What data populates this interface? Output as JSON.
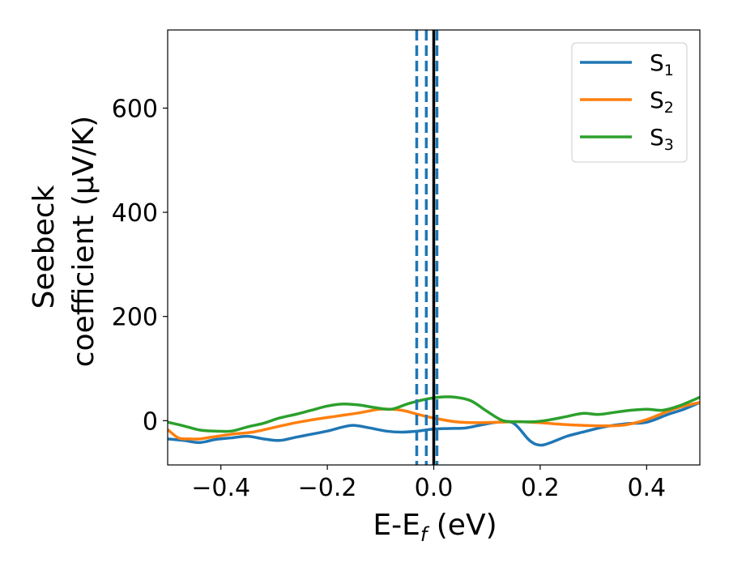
{
  "chart_data": {
    "type": "line",
    "xlabel": {
      "main": "E-E",
      "sub": "f",
      "rest": " (eV)"
    },
    "ylabel": {
      "line1": "Seebeck",
      "line2": "coefficient  (μV/K)"
    },
    "xlim": [
      -0.5,
      0.5
    ],
    "ylim": [
      -85,
      750
    ],
    "xticks": [
      -0.4,
      -0.2,
      0.0,
      0.2,
      0.4
    ],
    "xtick_labels": [
      "−0.4",
      "−0.2",
      "0.0",
      "0.2",
      "0.4"
    ],
    "yticks": [
      0,
      200,
      400,
      600
    ],
    "ytick_labels": [
      "0",
      "200",
      "400",
      "600"
    ],
    "grid": false,
    "legend_position": "top-right",
    "vlines": [
      {
        "x": 0.0,
        "style": "solid",
        "color": "#000000"
      },
      {
        "x": -0.032,
        "style": "dashed",
        "color": "#1f77b4"
      },
      {
        "x": -0.014,
        "style": "dashed",
        "color": "#1f77b4"
      },
      {
        "x": 0.006,
        "style": "dashed",
        "color": "#1f77b4"
      }
    ],
    "series": [
      {
        "name": "S",
        "sub": "1",
        "color": "#1f77b4",
        "x": [
          -0.5,
          -0.47,
          -0.44,
          -0.41,
          -0.38,
          -0.35,
          -0.32,
          -0.29,
          -0.26,
          -0.23,
          -0.2,
          -0.17,
          -0.15,
          -0.12,
          -0.09,
          -0.06,
          -0.03,
          0.0,
          0.03,
          0.06,
          0.09,
          0.12,
          0.15,
          0.18,
          0.2,
          0.22,
          0.25,
          0.28,
          0.32,
          0.36,
          0.4,
          0.44,
          0.47,
          0.5
        ],
        "y": [
          -35,
          -38,
          -42,
          -36,
          -33,
          -30,
          -35,
          -38,
          -32,
          -26,
          -20,
          -12,
          -9,
          -14,
          -20,
          -22,
          -20,
          -16,
          -15,
          -14,
          -8,
          -3,
          -5,
          -38,
          -47,
          -42,
          -30,
          -22,
          -12,
          -6,
          -3,
          12,
          22,
          35
        ]
      },
      {
        "name": "S",
        "sub": "2",
        "color": "#ff7f0e",
        "x": [
          -0.5,
          -0.48,
          -0.46,
          -0.44,
          -0.42,
          -0.38,
          -0.34,
          -0.3,
          -0.26,
          -0.22,
          -0.18,
          -0.14,
          -0.1,
          -0.06,
          -0.03,
          0.0,
          0.04,
          0.08,
          0.12,
          0.16,
          0.2,
          0.24,
          0.28,
          0.32,
          0.36,
          0.4,
          0.44,
          0.47,
          0.5
        ],
        "y": [
          -17,
          -33,
          -35,
          -35,
          -32,
          -26,
          -22,
          -13,
          -4,
          3,
          9,
          15,
          22,
          20,
          12,
          5,
          -2,
          -4,
          -3,
          -2,
          -4,
          -7,
          -9,
          -10,
          -8,
          2,
          18,
          28,
          35
        ]
      },
      {
        "name": "S",
        "sub": "3",
        "color": "#2ca02c",
        "x": [
          -0.5,
          -0.47,
          -0.44,
          -0.41,
          -0.38,
          -0.35,
          -0.32,
          -0.29,
          -0.26,
          -0.23,
          -0.2,
          -0.17,
          -0.14,
          -0.11,
          -0.08,
          -0.05,
          -0.02,
          0.01,
          0.04,
          0.07,
          0.1,
          0.13,
          0.16,
          0.19,
          0.22,
          0.25,
          0.28,
          0.31,
          0.34,
          0.37,
          0.4,
          0.43,
          0.46,
          0.5
        ],
        "y": [
          -3,
          -10,
          -18,
          -20,
          -20,
          -12,
          -5,
          5,
          12,
          20,
          28,
          32,
          30,
          25,
          22,
          32,
          40,
          45,
          45,
          38,
          18,
          0,
          -2,
          -2,
          2,
          8,
          14,
          12,
          16,
          20,
          22,
          20,
          28,
          45
        ]
      }
    ]
  }
}
